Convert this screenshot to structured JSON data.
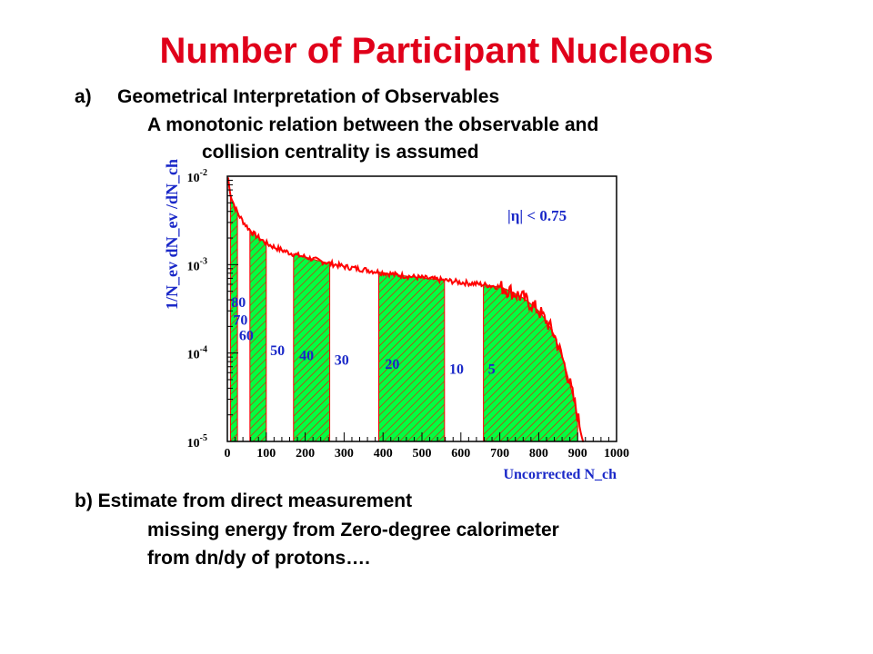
{
  "slide": {
    "title": "Number of Participant Nucleons",
    "section_a": {
      "label": "a)",
      "heading": "Geometrical Interpretation of Observables",
      "line1": "A monotonic relation between the observable and",
      "line2": "collision centrality is assumed"
    },
    "section_b": {
      "heading": "b) Estimate from direct measurement",
      "line1": "missing energy from Zero-degree calorimeter",
      "line2": "from dn/dy of protons…."
    }
  },
  "chart_data": {
    "type": "area",
    "ylabel": "1/N_ev dN_ev /dN_ch",
    "xlabel": "Uncorrected N_ch",
    "annotation": "|η| < 0.75",
    "x_range": [
      0,
      1000
    ],
    "y_range_log10": [
      -5,
      -2
    ],
    "y_scale": "log",
    "x_ticks": [
      "0",
      "100",
      "200",
      "300",
      "400",
      "500",
      "600",
      "700",
      "800",
      "900",
      "1000"
    ],
    "y_ticks": [
      "10^-2",
      "10^-3",
      "10^-4",
      "10^-5"
    ],
    "series": [
      {
        "x": [
          0,
          5,
          10,
          20,
          30,
          40,
          50,
          60,
          75,
          90,
          100,
          120,
          140,
          160,
          180,
          200,
          230,
          260,
          300,
          350,
          400,
          450,
          500,
          550,
          600,
          650,
          700,
          720,
          740,
          760,
          780,
          800,
          820,
          840,
          860,
          870,
          880,
          890,
          900,
          910,
          915
        ],
        "y": [
          0.0115,
          0.0075,
          0.0058,
          0.0044,
          0.0036,
          0.0031,
          0.0027,
          0.0024,
          0.0021,
          0.00188,
          0.00175,
          0.00158,
          0.00146,
          0.00136,
          0.00128,
          0.00122,
          0.00112,
          0.00104,
          0.00095,
          0.00088,
          0.00081,
          0.00075,
          0.00071,
          0.00067,
          0.00063,
          0.0006,
          0.00056,
          0.00052,
          0.00047,
          0.00042,
          0.00036,
          0.0003,
          0.00023,
          0.00016,
          9e-05,
          6.5e-05,
          4.5e-05,
          3e-05,
          1.9e-05,
          1.3e-05,
          1e-05
        ]
      }
    ],
    "centrality_bins": [
      {
        "label": "80",
        "x_start": 8,
        "x_end": 26,
        "filled": true
      },
      {
        "label": "70",
        "x_start": 58,
        "x_end": 58,
        "filled": false
      },
      {
        "label": "60",
        "x_start": 58,
        "x_end": 100,
        "filled": true
      },
      {
        "label": "50",
        "x_start": 100,
        "x_end": 170,
        "filled": false
      },
      {
        "label": "40",
        "x_start": 170,
        "x_end": 263,
        "filled": true
      },
      {
        "label": "30",
        "x_start": 263,
        "x_end": 389,
        "filled": false
      },
      {
        "label": "20",
        "x_start": 389,
        "x_end": 558,
        "filled": true
      },
      {
        "label": "10",
        "x_start": 558,
        "x_end": 658,
        "filled": false
      },
      {
        "label": "5",
        "x_start": 658,
        "x_end": 900,
        "filled": true
      }
    ],
    "colors": {
      "line": "#ff0000",
      "fill": "#00ff40",
      "hatch": "#ff0000",
      "axis_text": "#1a28c8"
    },
    "grid": false
  }
}
